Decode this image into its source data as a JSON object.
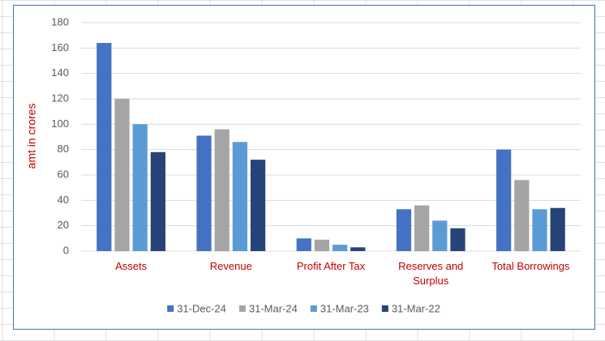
{
  "chart_data": {
    "type": "bar",
    "y_label": "amt in crores",
    "categories": [
      "Assets",
      "Revenue",
      "Profit After Tax",
      "Reserves and Surplus",
      "Total Borrowings"
    ],
    "series": [
      {
        "name": "31-Dec-24",
        "color": "#4472c4",
        "values": [
          164,
          91,
          10,
          33,
          80
        ]
      },
      {
        "name": "31-Mar-24",
        "color": "#a5a5a5",
        "values": [
          120,
          96,
          9,
          36,
          56
        ]
      },
      {
        "name": "31-Mar-23",
        "color": "#5b9bd5",
        "values": [
          100,
          86,
          5,
          24,
          33
        ]
      },
      {
        "name": "31-Mar-22",
        "color": "#264478",
        "values": [
          78,
          72,
          3,
          18,
          34
        ]
      }
    ],
    "ylim": [
      0,
      180
    ],
    "yticks": [
      0,
      20,
      40,
      60,
      80,
      100,
      120,
      140,
      160,
      180
    ],
    "grid": true,
    "legend": "bottom"
  }
}
